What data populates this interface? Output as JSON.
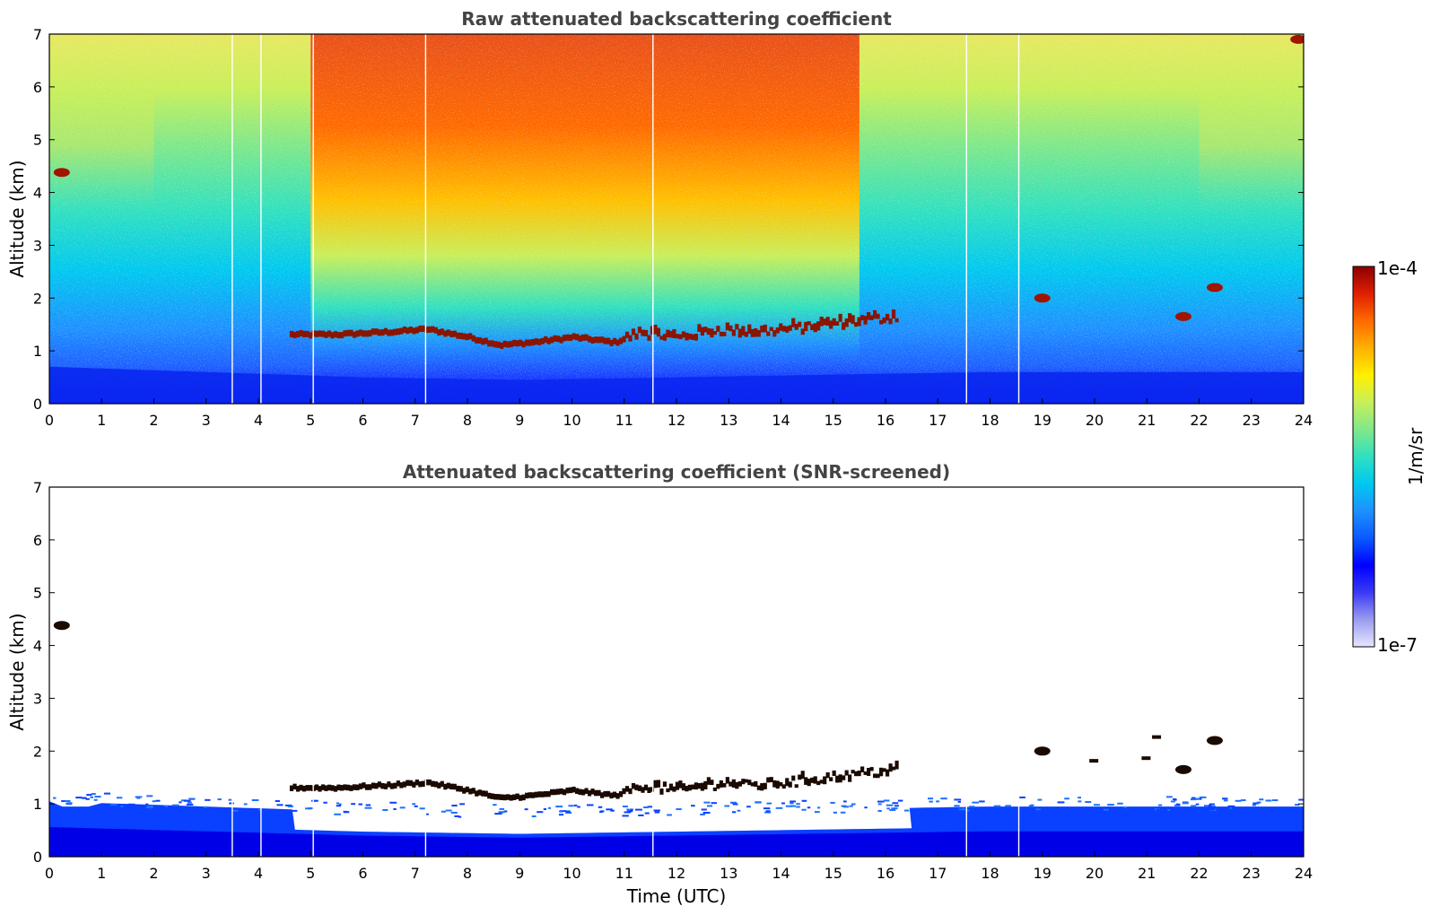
{
  "chart_data": [
    {
      "type": "heatmap",
      "title": "Raw attenuated backscattering coefficient",
      "xlabel": "",
      "ylabel": "Altitude (km)",
      "xlim": [
        0,
        24
      ],
      "ylim": [
        0,
        7
      ],
      "x_ticks": [
        "0",
        "1",
        "2",
        "3",
        "4",
        "5",
        "6",
        "7",
        "8",
        "9",
        "10",
        "11",
        "12",
        "13",
        "14",
        "15",
        "16",
        "17",
        "18",
        "19",
        "20",
        "21",
        "22",
        "23",
        "24"
      ],
      "y_ticks": [
        "0",
        "1",
        "2",
        "3",
        "4",
        "5",
        "6",
        "7"
      ],
      "layers": [
        {
          "feature": "boundary layer",
          "x": [
            0,
            24
          ],
          "top_km": [
            0.7,
            0.6,
            0.5,
            0.45,
            0.5,
            0.55,
            0.6,
            0.6,
            0.6
          ]
        },
        {
          "feature": "cloud layer",
          "x": [
            4.6,
            5.5,
            6.5,
            7.2,
            8,
            8.6,
            9.2,
            10,
            10.8,
            11.3,
            12,
            12.8,
            13.5,
            14.5,
            15.3,
            16.2
          ],
          "base_km": [
            1.25,
            1.25,
            1.3,
            1.35,
            1.2,
            1.05,
            1.1,
            1.2,
            1.1,
            1.3,
            1.2,
            1.35,
            1.3,
            1.4,
            1.5,
            1.6
          ]
        },
        {
          "feature": "cloud patch",
          "x": 0.1,
          "alt_km": 4.38
        },
        {
          "feature": "cloud patch",
          "x": 19.0,
          "alt_km": 2.0
        },
        {
          "feature": "cloud patch",
          "x": 21.7,
          "alt_km": 1.65
        },
        {
          "feature": "cloud patch",
          "x": 22.3,
          "alt_km": 2.2
        },
        {
          "feature": "cloud patch",
          "x": 23.9,
          "alt_km": 6.9
        }
      ],
      "high_signal_period": [
        4.8,
        15.3
      ],
      "data_gaps": [
        3.5,
        4.05,
        5.05,
        7.2,
        11.55,
        17.55,
        18.55
      ]
    },
    {
      "type": "heatmap",
      "title": "Attenuated backscattering coefficient (SNR-screened)",
      "xlabel": "Time (UTC)",
      "ylabel": "Altitude (km)",
      "xlim": [
        0,
        24
      ],
      "ylim": [
        0,
        7
      ],
      "x_ticks": [
        "0",
        "1",
        "2",
        "3",
        "4",
        "5",
        "6",
        "7",
        "8",
        "9",
        "10",
        "11",
        "12",
        "13",
        "14",
        "15",
        "16",
        "17",
        "18",
        "19",
        "20",
        "21",
        "22",
        "23",
        "24"
      ],
      "y_ticks": [
        "0",
        "1",
        "2",
        "3",
        "4",
        "5",
        "6",
        "7"
      ],
      "screened": true
    }
  ],
  "colorbar": {
    "label": "1/m/sr",
    "max_label": "1e-4",
    "min_label": "1e-7",
    "scale": "log",
    "colormap": [
      "#e6e6ff",
      "#9c9cf0",
      "#3a3af5",
      "#0000ff",
      "#0a5aff",
      "#1e90ff",
      "#00c8f0",
      "#30e0c0",
      "#7fe88a",
      "#c8ef5a",
      "#fff000",
      "#ffb000",
      "#ff6a00",
      "#e01e00",
      "#8b0000"
    ]
  }
}
